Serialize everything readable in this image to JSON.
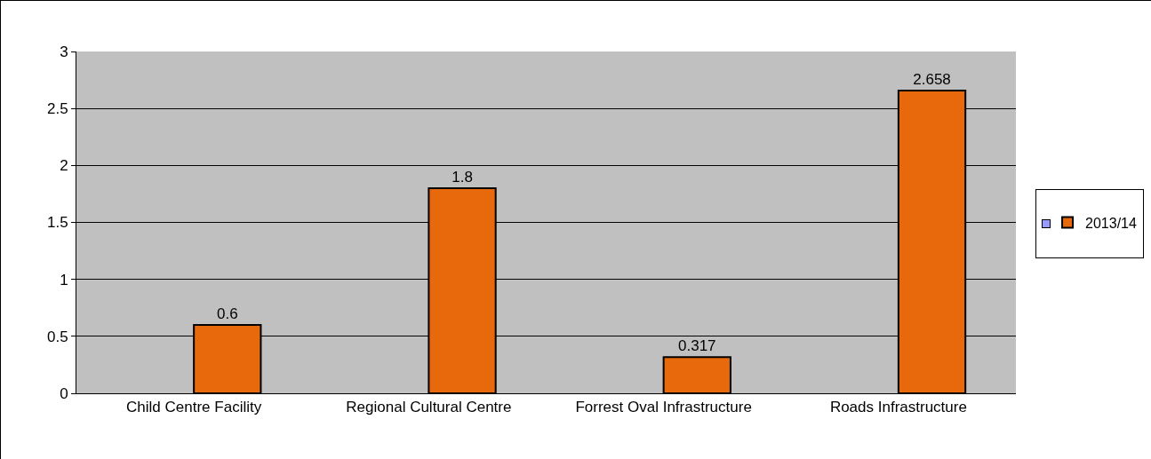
{
  "chart_data": {
    "type": "bar",
    "categories": [
      "Child Centre Facility",
      "Regional Cultural Centre",
      "Forrest Oval Infrastructure",
      "Roads Infrastructure"
    ],
    "series": [
      {
        "color": "#9999ff",
        "values": [
          null,
          null,
          null,
          null
        ]
      },
      {
        "name": "2013/14",
        "color": "#e8680c",
        "values": [
          0.6,
          1.8,
          0.317,
          2.658
        ]
      }
    ],
    "ylim": [
      0,
      3
    ],
    "yticks": [
      0,
      0.5,
      1,
      1.5,
      2,
      2.5,
      3
    ],
    "grid": "y",
    "legend": "right",
    "data_labels": true
  }
}
